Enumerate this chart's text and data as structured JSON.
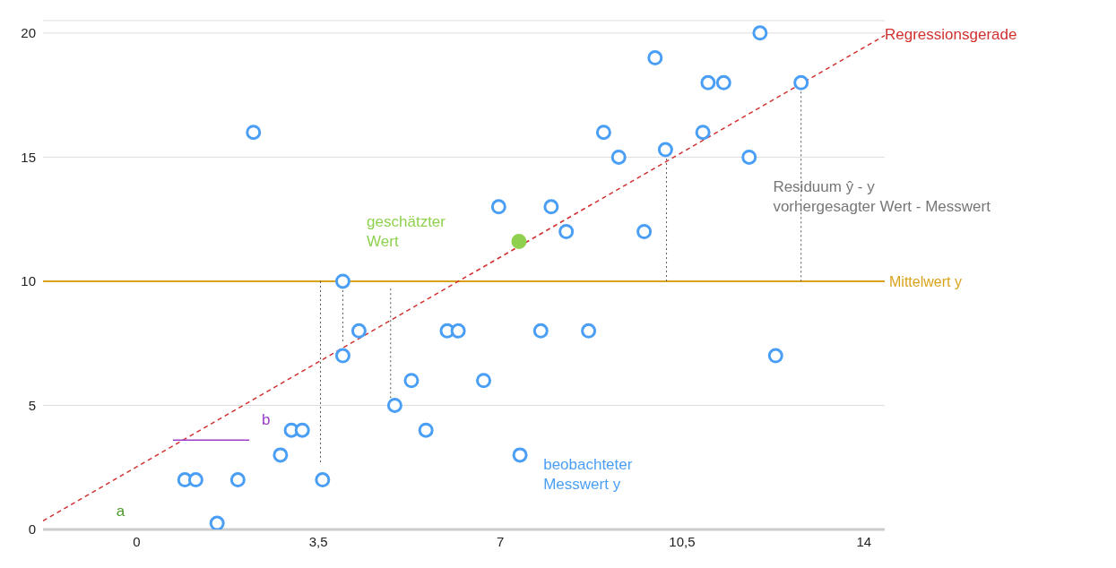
{
  "chart_data": {
    "type": "scatter",
    "xlim": [
      -1.8,
      14.4
    ],
    "ylim": [
      0,
      20.5
    ],
    "xticks": [
      0,
      {
        "value": 3.5,
        "label": "3,5"
      },
      7,
      {
        "value": 10.5,
        "label": "10,5"
      },
      14
    ],
    "yticks": [
      0,
      5,
      10,
      15,
      20
    ],
    "grid": "y",
    "series": [
      {
        "type": "line",
        "color": "#d0302f",
        "line_style": "dashed",
        "marker": "none",
        "x": [
          -1.8,
          14.4
        ],
        "values": [
          0.35,
          19.9
        ]
      },
      {
        "type": "line",
        "color": "#555555",
        "line_style": "dotted",
        "marker": "none",
        "x": [
          3.54,
          3.54
        ],
        "values": [
          10,
          2.6
        ]
      },
      {
        "type": "line",
        "color": "#555555",
        "line_style": "dotted",
        "marker": "none",
        "x": [
          3.97,
          3.97
        ],
        "values": [
          10,
          7.5
        ]
      },
      {
        "type": "line",
        "color": "#555555",
        "line_style": "dotted",
        "marker": "none",
        "x": [
          4.89,
          4.89
        ],
        "values": [
          9.7,
          5
        ]
      },
      {
        "type": "line",
        "color": "#555555",
        "line_style": "dotted",
        "marker": "none",
        "x": [
          10.2,
          10.2
        ],
        "values": [
          15.3,
          10
        ]
      },
      {
        "type": "line",
        "color": "#555555",
        "line_style": "dotted",
        "marker": "none",
        "x": [
          12.79,
          12.79
        ],
        "values": [
          18,
          10
        ]
      },
      {
        "type": "line",
        "color": "#9b3fc8",
        "line_style": "solid",
        "marker": "none",
        "x": [
          0.7,
          2.17
        ],
        "values": [
          3.6,
          3.6
        ]
      },
      {
        "color": "#4a9ff5",
        "marker": "circle",
        "x": [
          0.93,
          1.14,
          1.55,
          1.95,
          2.25,
          2.77,
          2.98,
          3.19,
          3.58,
          3.97,
          3.97,
          4.28,
          4.97,
          5.29,
          5.57,
          5.98,
          6.19,
          6.68,
          6.97,
          7.38,
          7.78,
          7.98,
          8.27,
          8.7,
          8.99,
          9.28,
          9.77,
          9.98,
          10.18,
          10.9,
          11.0,
          11.3,
          11.79,
          12.0,
          12.3,
          12.79
        ],
        "values": [
          2,
          2,
          0.25,
          2,
          16,
          3,
          4,
          4,
          2,
          10,
          7,
          8,
          5,
          6,
          4,
          8,
          8,
          6,
          13,
          3,
          8,
          13,
          12,
          8,
          16,
          15,
          12,
          19,
          15.3,
          16,
          18,
          18,
          15,
          20,
          7,
          18
        ]
      },
      {
        "type": "line",
        "color": "#8fd14f",
        "line_style": "solid",
        "marker": "circle",
        "x": [
          7.36
        ],
        "values": [
          11.6
        ]
      }
    ],
    "ref_lines": [
      {
        "axis": "y",
        "value": 10,
        "label": "Mittelwert y",
        "color": "#d9a21b"
      }
    ],
    "annotations": [
      {
        "text": "Regressionsgerade",
        "x": 14.4,
        "y": 19.9
      },
      "geschätzter\nWert",
      "Residuum ŷ - y\nvorhergesagter Wert - Messwert",
      "beobachteter\nMesswert y",
      "a",
      "b"
    ]
  }
}
